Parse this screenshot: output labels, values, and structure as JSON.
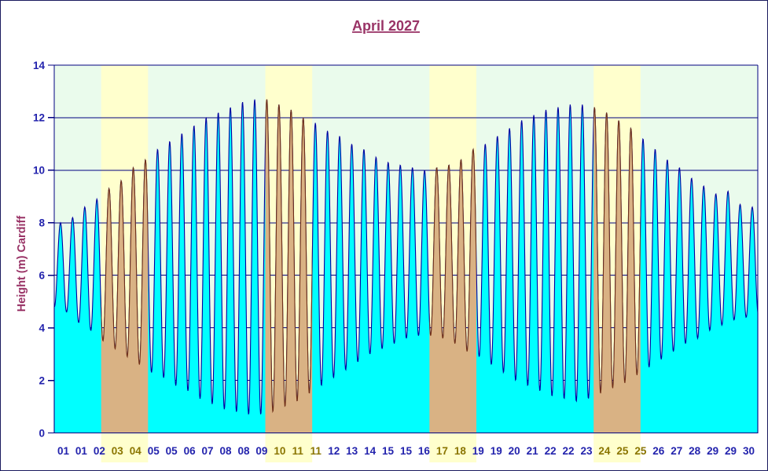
{
  "chart_data": {
    "type": "area",
    "title": "April 2027",
    "ylabel": "Height (m) Cardiff",
    "station": "Cardiff",
    "month": "April",
    "year": "2027",
    "ylim": [
      0,
      14
    ],
    "ytick_step": 2,
    "days": 30,
    "grid": {
      "horizontal_step": 2,
      "vertical": false
    },
    "legend": "none",
    "tide_period_hours": 12.42,
    "first_high_water_hour": 6.4,
    "x_day_labels": [
      "01",
      "01",
      "02",
      "03",
      "04",
      "05",
      "05",
      "06",
      "07",
      "08",
      "08",
      "09",
      "10",
      "11",
      "11",
      "12",
      "13",
      "14",
      "15",
      "15",
      "16",
      "17",
      "18",
      "19",
      "19",
      "20",
      "21",
      "22",
      "22",
      "23",
      "24",
      "25",
      "25",
      "26",
      "27",
      "28",
      "29",
      "29",
      "30"
    ],
    "x_label_weekend_indices": [
      3,
      4,
      12,
      13,
      14,
      21,
      22,
      30,
      31,
      32
    ],
    "weekend_day_bands": [
      [
        2,
        4
      ],
      [
        9,
        11
      ],
      [
        16,
        18
      ],
      [
        23,
        25
      ]
    ],
    "daily_high_waters_m": [
      [
        8.0,
        8.2
      ],
      [
        8.6,
        8.9
      ],
      [
        9.3,
        9.6
      ],
      [
        10.1,
        10.4
      ],
      [
        10.8,
        11.1
      ],
      [
        11.4,
        11.7
      ],
      [
        12.0,
        12.2
      ],
      [
        12.4,
        12.6
      ],
      [
        12.7,
        12.7
      ],
      [
        12.5,
        12.3
      ],
      [
        12.0,
        11.8
      ],
      [
        11.5,
        11.3
      ],
      [
        11.0,
        10.8
      ],
      [
        10.5,
        10.3
      ],
      [
        10.2,
        10.1
      ],
      [
        10.0,
        10.1
      ],
      [
        10.2,
        10.4
      ],
      [
        10.8,
        11.0
      ],
      [
        11.3,
        11.6
      ],
      [
        11.9,
        12.1
      ],
      [
        12.3,
        12.4
      ],
      [
        12.5,
        12.5
      ],
      [
        12.4,
        12.2
      ],
      [
        11.9,
        11.6
      ],
      [
        11.2,
        10.8
      ],
      [
        10.4,
        10.1
      ],
      [
        9.7,
        9.4
      ],
      [
        9.1,
        9.2
      ],
      [
        8.7,
        8.6
      ],
      [
        8.3,
        8.5
      ]
    ],
    "daily_low_waters_m": [
      [
        4.8,
        4.6
      ],
      [
        4.2,
        3.9
      ],
      [
        3.5,
        3.2
      ],
      [
        2.9,
        2.6
      ],
      [
        2.3,
        2.1
      ],
      [
        1.8,
        1.6
      ],
      [
        1.3,
        1.1
      ],
      [
        0.9,
        0.8
      ],
      [
        0.7,
        0.7
      ],
      [
        0.8,
        1.0
      ],
      [
        1.2,
        1.5
      ],
      [
        1.8,
        2.1
      ],
      [
        2.4,
        2.7
      ],
      [
        3.0,
        3.2
      ],
      [
        3.4,
        3.6
      ],
      [
        3.7,
        3.7
      ],
      [
        3.6,
        3.4
      ],
      [
        3.1,
        2.9
      ],
      [
        2.6,
        2.3
      ],
      [
        2.0,
        1.8
      ],
      [
        1.6,
        1.4
      ],
      [
        1.3,
        1.2
      ],
      [
        1.3,
        1.5
      ],
      [
        1.7,
        1.9
      ],
      [
        2.2,
        2.5
      ],
      [
        2.8,
        3.1
      ],
      [
        3.4,
        3.6
      ],
      [
        3.9,
        4.1
      ],
      [
        4.3,
        4.4
      ],
      [
        4.5,
        4.6
      ]
    ]
  },
  "colors": {
    "title": "#993366",
    "axis_title": "#993366",
    "tick_text": "#2323ad",
    "weekend_tick_text": "#8a7500",
    "gridline": "#000080",
    "plot_border": "#000080",
    "curve_weekday": "#0000a0",
    "curve_weekend": "#703018",
    "fill_weekday": "#00ffff",
    "fill_weekend": "#d9b284",
    "bg_weekday": "#eafbec",
    "bg_weekend": "#ffffcd"
  }
}
